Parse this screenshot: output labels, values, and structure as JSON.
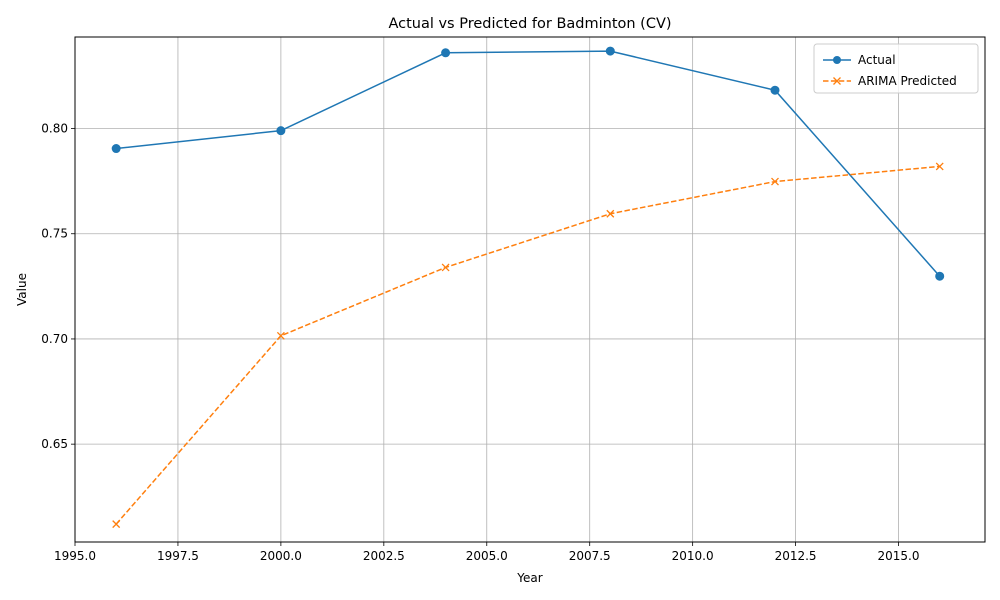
{
  "chart_data": {
    "type": "line",
    "title": "Actual vs Predicted for Badminton (CV)",
    "xlabel": "Year",
    "ylabel": "Value",
    "xlim": [
      1995.0,
      2017.1
    ],
    "ylim": [
      0.6035,
      0.8435
    ],
    "xticks": [
      "1995.0",
      "1997.5",
      "2000.0",
      "2002.5",
      "2005.0",
      "2007.5",
      "2010.0",
      "2012.5",
      "2015.0"
    ],
    "xtick_values": [
      1995.0,
      1997.5,
      2000.0,
      2002.5,
      2005.0,
      2007.5,
      2010.0,
      2012.5,
      2015.0
    ],
    "yticks": [
      "0.65",
      "0.70",
      "0.75",
      "0.80"
    ],
    "ytick_values": [
      0.65,
      0.7,
      0.75,
      0.8
    ],
    "grid": true,
    "legend_position": "top-right",
    "x": [
      1996,
      2000,
      2004,
      2008,
      2012,
      2016
    ],
    "series": [
      {
        "name": "Actual",
        "color": "#1f77b4",
        "line_style": "solid",
        "marker": "circle",
        "values": [
          0.7905,
          0.799,
          0.836,
          0.8368,
          0.8182,
          0.7298
        ]
      },
      {
        "name": "ARIMA Predicted",
        "color": "#ff7f0e",
        "line_style": "dashed",
        "marker": "x",
        "values": [
          0.612,
          0.7015,
          0.734,
          0.7595,
          0.7748,
          0.782
        ]
      }
    ]
  }
}
